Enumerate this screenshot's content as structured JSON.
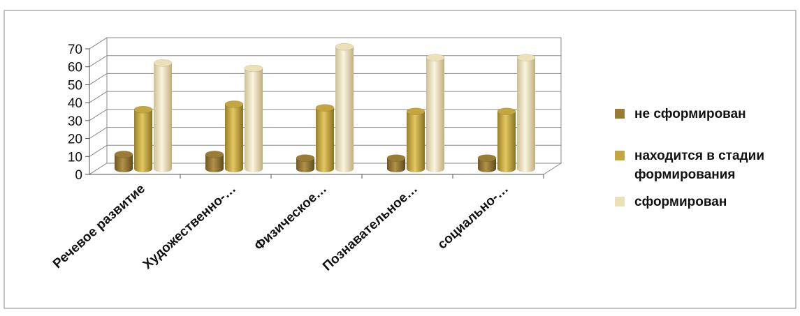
{
  "chart_data": {
    "type": "bar",
    "categories": [
      "Речевое развитие",
      "Художественно-…",
      "Физическое…",
      "Познавательное…",
      "социально-…"
    ],
    "series": [
      {
        "name": "не сформирован",
        "values": [
          8,
          8,
          6,
          6,
          6
        ],
        "color": "#9a7b34"
      },
      {
        "name": "находится в стадии формирования",
        "values": [
          33,
          36,
          34,
          32,
          32
        ],
        "color": "#c4a53e"
      },
      {
        "name": "сформирован",
        "values": [
          59,
          56,
          68,
          62,
          62
        ],
        "color": "#ece0b6"
      }
    ],
    "y_ticks": [
      "0",
      "10",
      "20",
      "30",
      "40",
      "50",
      "60",
      "70"
    ],
    "ylim": [
      0,
      70
    ],
    "grid": true,
    "legend_position": "right",
    "title": "",
    "xlabel": "",
    "ylabel": ""
  }
}
